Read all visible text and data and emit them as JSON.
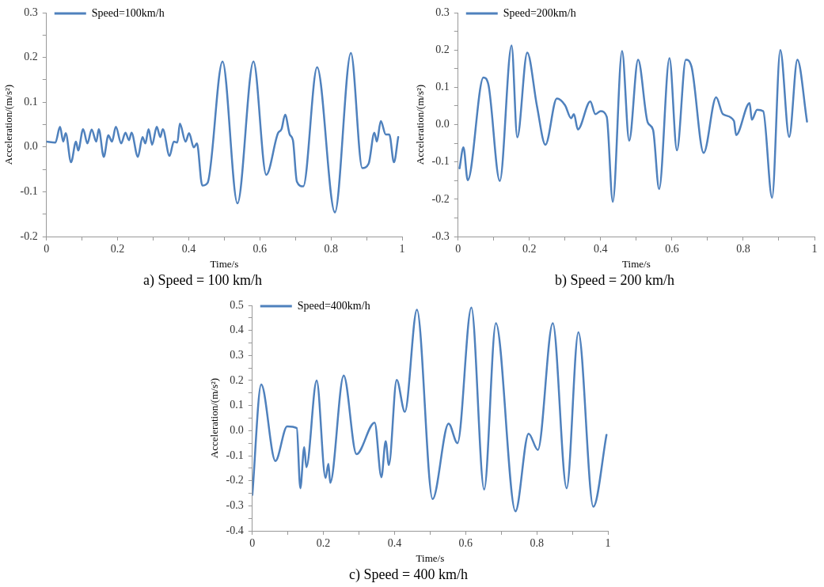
{
  "chart_data": [
    {
      "type": "line",
      "title": "a) Speed = 100 km/h",
      "xlabel": "Time/s",
      "ylabel": "Acceleration/(m/s²)",
      "legend": "top left",
      "grid": false,
      "marker": "none",
      "line_style": "solid",
      "xlim": [
        0,
        1
      ],
      "xticks": [
        0,
        {
          "value": 0.1,
          "label": null
        },
        0.2,
        {
          "value": 0.3,
          "label": null
        },
        0.4,
        {
          "value": 0.5,
          "label": null
        },
        0.6,
        {
          "value": 0.7,
          "label": null
        },
        0.8,
        {
          "value": 0.9,
          "label": null
        },
        1
      ],
      "ylim": [
        -0.2,
        0.3
      ],
      "yticks": [
        -0.2,
        {
          "value": -0.15,
          "label": null
        },
        -0.1,
        {
          "value": -0.05,
          "label": null
        },
        {
          "value": 0,
          "label": "0.0"
        },
        {
          "value": 0.05,
          "label": null
        },
        0.1,
        {
          "value": 0.15,
          "label": null
        },
        0.2,
        {
          "value": 0.25,
          "label": null
        },
        0.3
      ],
      "series": [
        {
          "name": "Speed=100km/h",
          "color": "#4f81bd",
          "x": [
            0,
            0.025,
            0.038,
            0.047,
            0.054,
            0.069,
            0.083,
            0.089,
            0.103,
            0.115,
            0.127,
            0.14,
            0.147,
            0.161,
            0.174,
            0.184,
            0.195,
            0.21,
            0.222,
            0.232,
            0.239,
            0.257,
            0.27,
            0.278,
            0.287,
            0.297,
            0.31,
            0.32,
            0.327,
            0.346,
            0.358,
            0.368,
            0.375,
            0.391,
            0.401,
            0.414,
            0.423,
            0.438,
            0.453,
            0.495,
            0.537,
            0.582,
            0.618,
            0.651,
            0.661,
            0.671,
            0.684,
            0.693,
            0.704,
            0.722,
            0.761,
            0.811,
            0.856,
            0.888,
            0.906,
            0.922,
            0.929,
            0.94,
            0.954,
            0.964,
            0.977,
            0.989
          ],
          "values": [
            0.012,
            0.01,
            0.045,
            0.012,
            0.031,
            -0.034,
            0.012,
            -0.008,
            0.04,
            0.008,
            0.039,
            0.012,
            0.04,
            -0.022,
            0.026,
            0.012,
            0.045,
            0.008,
            0.032,
            0.015,
            0.032,
            -0.022,
            0.022,
            0.008,
            0.04,
            0.005,
            0.045,
            0.022,
            0.04,
            -0.02,
            0.012,
            0.01,
            0.052,
            0.012,
            0.031,
            -0.001,
            0.008,
            -0.086,
            -0.08,
            0.191,
            -0.126,
            0.191,
            -0.062,
            0.031,
            0.04,
            0.072,
            0.028,
            0.015,
            -0.077,
            -0.088,
            0.178,
            -0.146,
            0.21,
            -0.047,
            -0.037,
            0.032,
            0.012,
            0.058,
            0.028,
            0.028,
            -0.034,
            0.022
          ]
        }
      ]
    },
    {
      "type": "line",
      "title": "b) Speed = 200 km/h",
      "xlabel": "Time/s",
      "ylabel": "Acceleration/(m/s²)",
      "legend": "top left",
      "grid": false,
      "marker": "none",
      "line_style": "solid",
      "xlim": [
        0,
        1
      ],
      "xticks": [
        0,
        {
          "value": 0.1,
          "label": null
        },
        0.2,
        {
          "value": 0.3,
          "label": null
        },
        0.4,
        {
          "value": 0.5,
          "label": null
        },
        0.6,
        {
          "value": 0.7,
          "label": null
        },
        0.8,
        {
          "value": 0.9,
          "label": null
        },
        1
      ],
      "ylim": [
        -0.3,
        0.3
      ],
      "yticks": [
        -0.3,
        {
          "value": -0.25,
          "label": null
        },
        -0.2,
        {
          "value": -0.15,
          "label": null
        },
        -0.1,
        {
          "value": -0.05,
          "label": null
        },
        {
          "value": 0,
          "label": "0.0"
        },
        {
          "value": 0.05,
          "label": null
        },
        0.1,
        {
          "value": 0.15,
          "label": null
        },
        0.2,
        {
          "value": 0.25,
          "label": null
        },
        0.3
      ],
      "series": [
        {
          "name": "Speed=200km/h",
          "color": "#4f81bd",
          "x": [
            0.004,
            0.015,
            0.027,
            0.071,
            0.085,
            0.117,
            0.15,
            0.166,
            0.194,
            0.221,
            0.245,
            0.277,
            0.3,
            0.317,
            0.325,
            0.336,
            0.371,
            0.385,
            0.4,
            0.417,
            0.434,
            0.46,
            0.48,
            0.505,
            0.532,
            0.547,
            0.564,
            0.593,
            0.614,
            0.639,
            0.655,
            0.689,
            0.724,
            0.743,
            0.774,
            0.78,
            0.818,
            0.824,
            0.839,
            0.856,
            0.881,
            0.904,
            0.929,
            0.952,
            0.979
          ],
          "values": [
            -0.117,
            -0.061,
            -0.149,
            0.126,
            0.107,
            -0.151,
            0.212,
            -0.034,
            0.193,
            0.051,
            -0.054,
            0.07,
            0.052,
            0.017,
            0.028,
            -0.013,
            0.062,
            0.028,
            0.036,
            0.021,
            -0.207,
            0.197,
            -0.043,
            0.174,
            0.006,
            -0.014,
            -0.173,
            0.178,
            -0.069,
            0.174,
            0.155,
            -0.076,
            0.073,
            0.028,
            0.01,
            -0.028,
            0.058,
            0.013,
            0.04,
            0.036,
            -0.196,
            0.2,
            -0.033,
            0.174,
            0.008
          ]
        }
      ]
    },
    {
      "type": "line",
      "title": "c) Speed = 400 km/h",
      "xlabel": "Time/s",
      "ylabel": "Acceleration/(m/s²)",
      "legend": "top left",
      "grid": false,
      "marker": "none",
      "line_style": "solid",
      "xlim": [
        0,
        1
      ],
      "xticks": [
        0,
        {
          "value": 0.1,
          "label": null
        },
        0.2,
        {
          "value": 0.3,
          "label": null
        },
        0.4,
        {
          "value": 0.5,
          "label": null
        },
        0.6,
        {
          "value": 0.7,
          "label": null
        },
        0.8,
        {
          "value": 0.9,
          "label": null
        },
        1
      ],
      "ylim": [
        -0.4,
        0.5
      ],
      "yticks": [
        -0.4,
        {
          "value": -0.35,
          "label": null
        },
        -0.3,
        {
          "value": -0.25,
          "label": null
        },
        -0.2,
        {
          "value": -0.15,
          "label": null
        },
        -0.1,
        {
          "value": -0.05,
          "label": null
        },
        {
          "value": 0,
          "label": "0.0"
        },
        {
          "value": 0.05,
          "label": null
        },
        0.1,
        {
          "value": 0.15,
          "label": null
        },
        0.2,
        {
          "value": 0.25,
          "label": null
        },
        0.3,
        {
          "value": 0.35,
          "label": null
        },
        0.4,
        {
          "value": 0.45,
          "label": null
        },
        0.5
      ],
      "series": [
        {
          "name": "Speed=400km/h",
          "color": "#4f81bd",
          "x": [
            0,
            0.025,
            0.065,
            0.098,
            0.125,
            0.135,
            0.146,
            0.152,
            0.181,
            0.206,
            0.214,
            0.219,
            0.257,
            0.293,
            0.344,
            0.363,
            0.375,
            0.384,
            0.406,
            0.429,
            0.463,
            0.507,
            0.552,
            0.577,
            0.616,
            0.652,
            0.685,
            0.74,
            0.777,
            0.803,
            0.845,
            0.884,
            0.917,
            0.959,
            0.996
          ],
          "values": [
            -0.257,
            0.184,
            -0.121,
            0.017,
            0.01,
            -0.23,
            -0.066,
            -0.146,
            0.2,
            -0.189,
            -0.132,
            -0.208,
            0.22,
            -0.094,
            0.032,
            -0.186,
            -0.042,
            -0.137,
            0.202,
            0.075,
            0.483,
            -0.273,
            0.028,
            -0.05,
            0.491,
            -0.235,
            0.429,
            -0.322,
            -0.012,
            -0.077,
            0.429,
            -0.23,
            0.393,
            -0.304,
            -0.017
          ]
        }
      ]
    }
  ]
}
